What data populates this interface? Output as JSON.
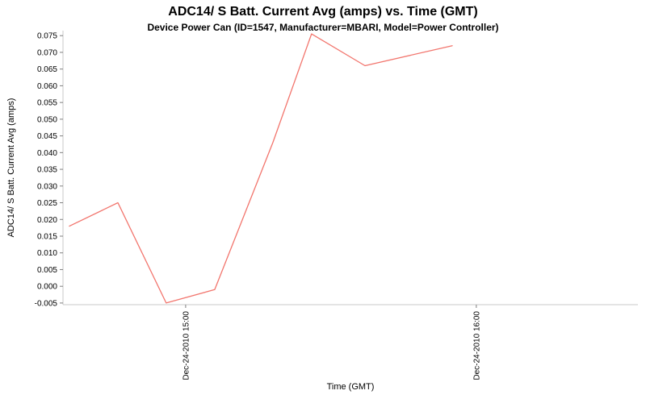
{
  "chart_data": {
    "type": "line",
    "title": "ADC14/ S Batt. Current Avg (amps) vs. Time (GMT)",
    "subtitle": "Device Power Can (ID=1547, Manufacturer=MBARI, Model=Power Controller)",
    "xlabel": "Time (GMT)",
    "ylabel": "ADC14/ S Batt. Current Avg (amps)",
    "grid": false,
    "legend": "none",
    "background_color": "#ffffff",
    "axis_color": "#c8c8c8",
    "tick_color": "#7f7f7f",
    "tick_text_color": "#000000",
    "xlim_hours": [
      14.578,
      16.556
    ],
    "ylim": [
      -0.0055,
      0.0765
    ],
    "y_ticks": [
      -0.005,
      0.0,
      0.005,
      0.01,
      0.015,
      0.02,
      0.025,
      0.03,
      0.035,
      0.04,
      0.045,
      0.05,
      0.055,
      0.06,
      0.065,
      0.07,
      0.075
    ],
    "x_ticks": [
      {
        "label": "Dec-24-2010 15:00",
        "hour": 15.0
      },
      {
        "label": "Dec-24-2010 16:00",
        "hour": 16.0
      }
    ],
    "series": [
      {
        "name": "ADC14/ S Batt. Current Avg",
        "color": "#f2756d",
        "points": [
          {
            "time": "Dec-24-2010 14:36",
            "hour": 14.6,
            "value": 0.018
          },
          {
            "time": "Dec-24-2010 14:46",
            "hour": 14.767,
            "value": 0.025
          },
          {
            "time": "Dec-24-2010 14:56",
            "hour": 14.933,
            "value": -0.005
          },
          {
            "time": "Dec-24-2010 15:06",
            "hour": 15.1,
            "value": -0.001
          },
          {
            "time": "Dec-24-2010 15:18",
            "hour": 15.3,
            "value": 0.043
          },
          {
            "time": "Dec-24-2010 15:26",
            "hour": 15.433,
            "value": 0.0755
          },
          {
            "time": "Dec-24-2010 15:37",
            "hour": 15.617,
            "value": 0.066
          },
          {
            "time": "Dec-24-2010 15:55",
            "hour": 15.917,
            "value": 0.072
          }
        ]
      }
    ]
  }
}
